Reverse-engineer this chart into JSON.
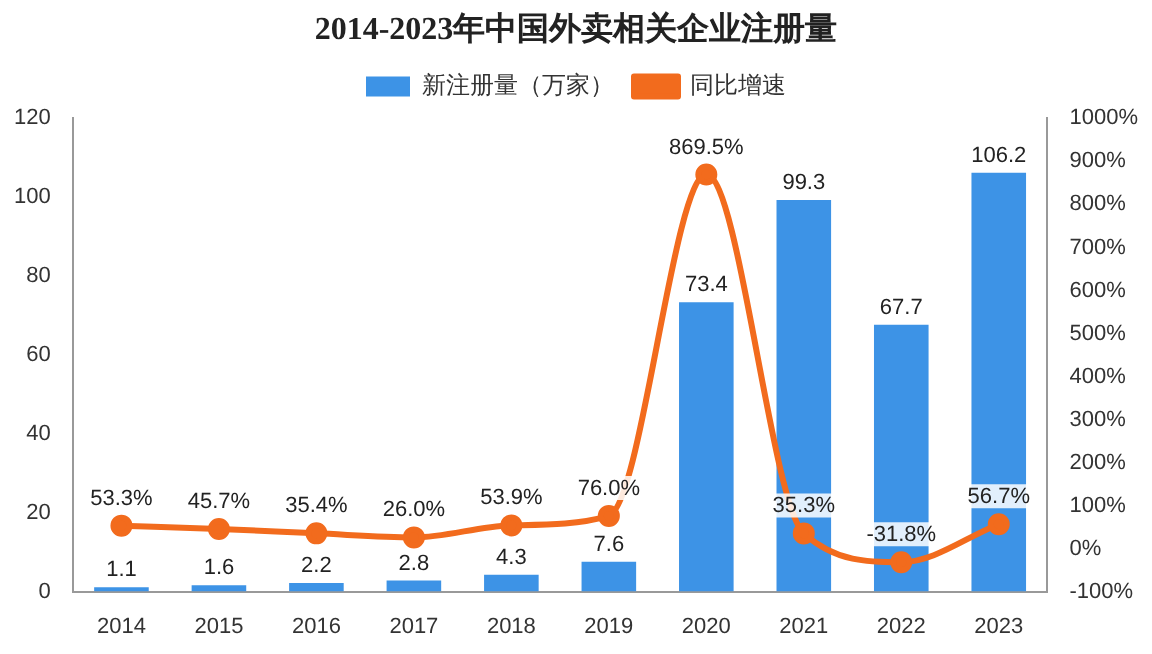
{
  "chart_data": {
    "type": "bar",
    "title": "2014-2023年中国外卖相关企业注册量",
    "categories": [
      "2014",
      "2015",
      "2016",
      "2017",
      "2018",
      "2019",
      "2020",
      "2021",
      "2022",
      "2023"
    ],
    "series": [
      {
        "name": "新注册量（万家）",
        "color": "#3d93e6",
        "values": [
          1.1,
          1.6,
          2.2,
          2.8,
          4.3,
          7.6,
          73.4,
          99.3,
          67.7,
          106.2
        ],
        "value_labels": [
          "1.1",
          "1.6",
          "2.2",
          "2.8",
          "4.3",
          "7.6",
          "73.4",
          "99.3",
          "67.7",
          "106.2"
        ]
      },
      {
        "name": "同比增速",
        "type": "line",
        "axis": "y2",
        "color": "#f26b1d",
        "marker": "circle",
        "values": [
          53.3,
          45.7,
          35.4,
          26.0,
          53.9,
          76.0,
          869.5,
          35.3,
          -31.8,
          56.7
        ],
        "value_labels": [
          "53.3%",
          "45.7%",
          "35.4%",
          "26.0%",
          "53.9%",
          "76.0%",
          "869.5%",
          "35.3%",
          "-31.8%",
          "56.7%"
        ]
      }
    ],
    "ylim": [
      0,
      120
    ],
    "yticks": [
      0,
      20,
      40,
      60,
      80,
      100,
      120
    ],
    "y2lim": [
      -100,
      1000
    ],
    "y2ticks": [
      {
        "value": -100,
        "label": "-100%"
      },
      {
        "value": 0,
        "label": "0%"
      },
      {
        "value": 100,
        "label": "100%"
      },
      {
        "value": 200,
        "label": "200%"
      },
      {
        "value": 300,
        "label": "300%"
      },
      {
        "value": 400,
        "label": "400%"
      },
      {
        "value": 500,
        "label": "500%"
      },
      {
        "value": 600,
        "label": "600%"
      },
      {
        "value": 700,
        "label": "700%"
      },
      {
        "value": 800,
        "label": "800%"
      },
      {
        "value": 900,
        "label": "900%"
      },
      {
        "value": 1000,
        "label": "1000%"
      }
    ],
    "legend": "top"
  }
}
